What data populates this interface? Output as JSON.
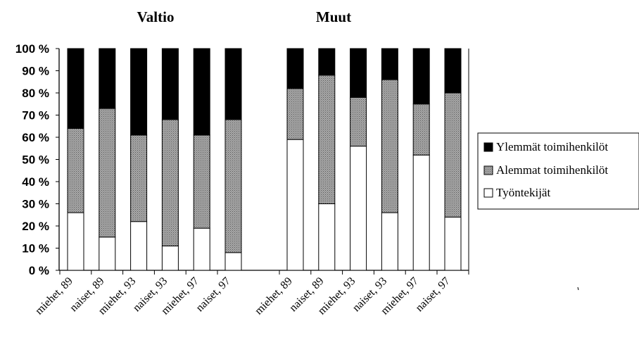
{
  "chart_data": {
    "type": "bar",
    "stacked": true,
    "percent": true,
    "panels": [
      {
        "title": "Valtio",
        "categories": [
          "miehet, 89",
          "naiset, 89",
          "miehet, 93",
          "naiset, 93",
          "miehet, 97",
          "naiset, 97"
        ],
        "series": [
          {
            "name": "Työntekijät",
            "values": [
              26,
              15,
              22,
              11,
              19,
              8
            ]
          },
          {
            "name": "Alemmat toimihenkilöt",
            "values": [
              38,
              58,
              39,
              57,
              42,
              60
            ]
          },
          {
            "name": "Ylemmät toimihenkilöt",
            "values": [
              36,
              27,
              39,
              32,
              39,
              32
            ]
          }
        ]
      },
      {
        "title": "Muut",
        "categories": [
          "miehet, 89",
          "naiset, 89",
          "miehet, 93",
          "naiset, 93",
          "miehet, 97",
          "naiset, 97"
        ],
        "series": [
          {
            "name": "Työntekijät",
            "values": [
              59,
              30,
              56,
              26,
              52,
              24
            ]
          },
          {
            "name": "Alemmat toimihenkilöt",
            "values": [
              23,
              58,
              22,
              60,
              23,
              56
            ]
          },
          {
            "name": "Ylemmät toimihenkilöt",
            "values": [
              18,
              12,
              22,
              14,
              25,
              20
            ]
          }
        ]
      }
    ],
    "y_ticks": [
      "0 %",
      "10 %",
      "20 %",
      "30 %",
      "40 %",
      "50 %",
      "60 %",
      "70 %",
      "80 %",
      "90 %",
      "100 %"
    ],
    "ylim": [
      0,
      100
    ],
    "grid": false,
    "legend": {
      "position": "right",
      "entries": [
        "Ylemmät toimihenkilöt",
        "Alemmat toimihenkilöt",
        "Työntekijät"
      ]
    },
    "colors": {
      "Työntekijät": "#ffffff",
      "Alemmat toimihenkilöt": "#8c8c8c",
      "Ylemmät toimihenkilöt": "#000000"
    }
  }
}
